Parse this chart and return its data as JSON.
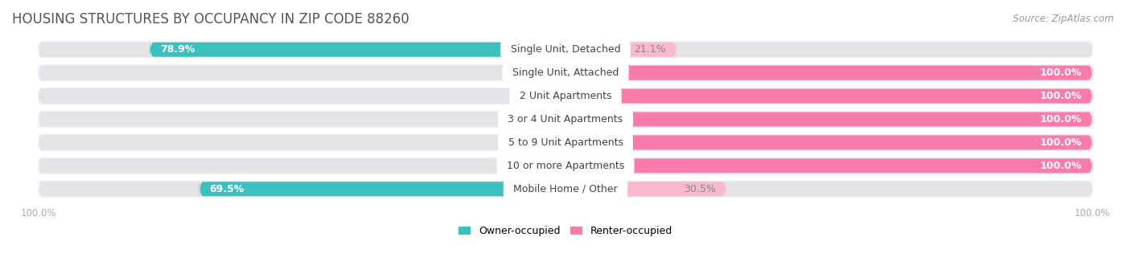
{
  "title": "HOUSING STRUCTURES BY OCCUPANCY IN ZIP CODE 88260",
  "source": "Source: ZipAtlas.com",
  "categories": [
    "Single Unit, Detached",
    "Single Unit, Attached",
    "2 Unit Apartments",
    "3 or 4 Unit Apartments",
    "5 to 9 Unit Apartments",
    "10 or more Apartments",
    "Mobile Home / Other"
  ],
  "owner_pct": [
    78.9,
    0.0,
    0.0,
    0.0,
    0.0,
    0.0,
    69.5
  ],
  "renter_pct": [
    21.1,
    100.0,
    100.0,
    100.0,
    100.0,
    100.0,
    30.5
  ],
  "owner_color": "#3bbfbf",
  "renter_color": "#f87bac",
  "renter_color_light": "#f9b8cf",
  "bar_bg_color": "#e3e3e8",
  "bar_height": 0.62,
  "row_bg_color": "#ededf0",
  "owner_legend_color": "#3bbfbf",
  "renter_legend_color": "#f87bac",
  "title_color": "#555555",
  "source_color": "#999999",
  "tick_label_color": "#aaaaaa",
  "category_fontsize": 9,
  "pct_fontsize": 9,
  "title_fontsize": 12,
  "source_fontsize": 8.5,
  "legend_fontsize": 9
}
